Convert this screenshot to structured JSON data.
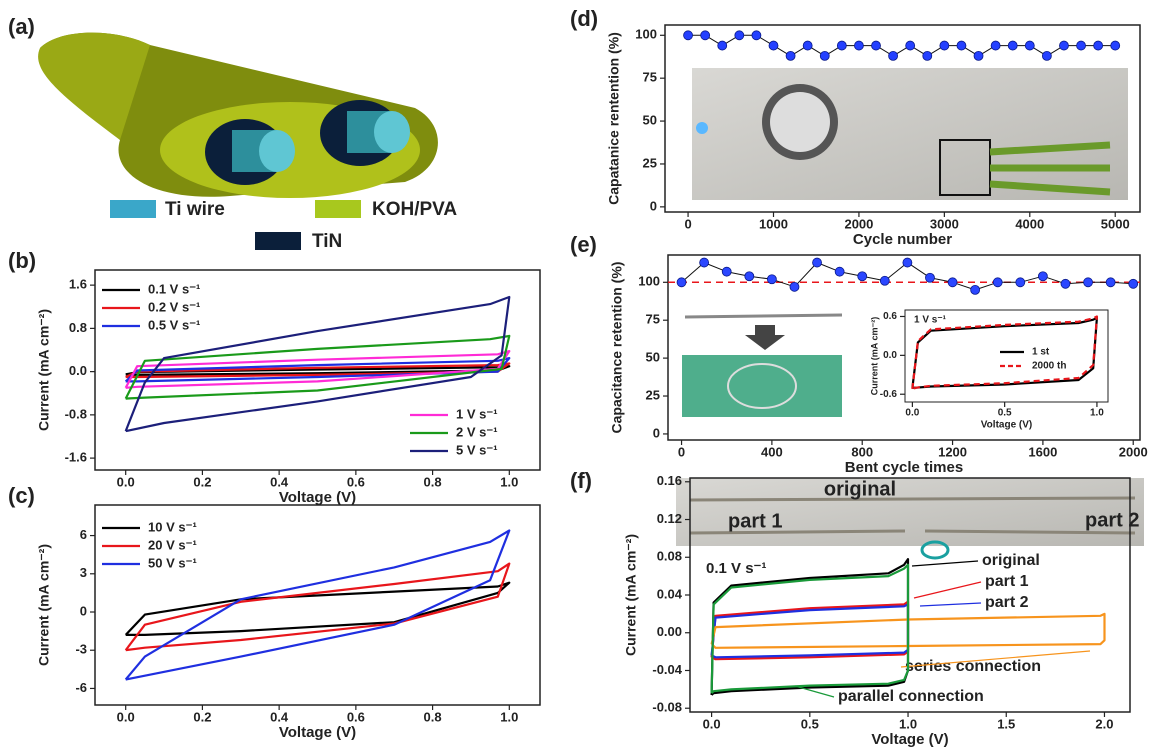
{
  "chart_data": [
    {
      "type": "diagram",
      "panel_label": "(a)",
      "legend": [
        {
          "name": "Ti wire",
          "color": "#3aa7c9"
        },
        {
          "name": "KOH/PVA",
          "color": "#a8c81e"
        },
        {
          "name": "TiN",
          "color": "#0b1f3a"
        }
      ]
    },
    {
      "type": "line",
      "panel_label": "(b)",
      "x_label": "Voltage (V)",
      "y_label": "Current (mA cm⁻²)",
      "xlim": [
        -0.08,
        1.08
      ],
      "ylim": [
        -1.82,
        1.88
      ],
      "xticks": [
        {
          "value": 0,
          "label": "0.0"
        },
        0.2,
        0.4,
        0.6,
        0.8,
        {
          "value": 1,
          "label": "1.0"
        }
      ],
      "yticks": [
        -1.6,
        -0.8,
        {
          "value": 0,
          "label": "0.0"
        },
        0.8,
        1.6
      ],
      "series": [
        {
          "name": "0.1 V s⁻¹",
          "color": "#000000",
          "x": [
            0,
            0.03,
            0.5,
            0.97,
            1,
            0.97,
            0.5,
            0.03,
            0
          ],
          "values": [
            -0.05,
            -0.01,
            0.04,
            0.08,
            0.1,
            0.02,
            -0.03,
            -0.06,
            -0.05
          ]
        },
        {
          "name": "0.2 V s⁻¹",
          "color": "#e8161b",
          "x": [
            0,
            0.03,
            0.5,
            0.97,
            1,
            0.97,
            0.5,
            0.03,
            0
          ],
          "values": [
            -0.1,
            0,
            0.07,
            0.12,
            0.15,
            0,
            -0.06,
            -0.1,
            -0.1
          ]
        },
        {
          "name": "0.5 V s⁻¹",
          "color": "#1f2fe0",
          "x": [
            0,
            0.03,
            0.5,
            0.97,
            1,
            0.97,
            0.5,
            0.03,
            0
          ],
          "values": [
            -0.18,
            0.02,
            0.12,
            0.2,
            0.25,
            0,
            -0.1,
            -0.18,
            -0.18
          ]
        },
        {
          "name": "1 V s⁻¹",
          "color": "#ff2bd6",
          "x": [
            0,
            0.03,
            0.5,
            0.97,
            1,
            0.97,
            0.5,
            0.03,
            0
          ],
          "values": [
            -0.3,
            0.1,
            0.22,
            0.32,
            0.38,
            0.05,
            -0.18,
            -0.28,
            -0.3
          ]
        },
        {
          "name": "2 V s⁻¹",
          "color": "#1a9a1a",
          "x": [
            0,
            0.05,
            0.5,
            0.95,
            1,
            0.98,
            0.5,
            0.05,
            0
          ],
          "values": [
            -0.5,
            0.2,
            0.42,
            0.6,
            0.66,
            0.05,
            -0.35,
            -0.48,
            -0.5
          ]
        },
        {
          "name": "5 V s⁻¹",
          "color": "#1c1f7a",
          "x": [
            0,
            0.05,
            0.1,
            0.5,
            0.95,
            1,
            0.98,
            0.9,
            0.5,
            0.1,
            0
          ],
          "values": [
            -1.1,
            -0.2,
            0.25,
            0.75,
            1.25,
            1.38,
            0.3,
            -0.1,
            -0.55,
            -0.95,
            -1.1
          ]
        }
      ]
    },
    {
      "type": "line",
      "panel_label": "(c)",
      "x_label": "Voltage (V)",
      "y_label": "Current (mA cm⁻²)",
      "xlim": [
        -0.08,
        1.08
      ],
      "ylim": [
        -7.3,
        8.4
      ],
      "xticks": [
        {
          "value": 0,
          "label": "0.0"
        },
        0.2,
        0.4,
        0.6,
        0.8,
        {
          "value": 1,
          "label": "1.0"
        }
      ],
      "yticks": [
        -6,
        -3,
        0,
        3,
        6
      ],
      "series": [
        {
          "name": "10 V s⁻¹",
          "color": "#000000",
          "x": [
            0,
            0.05,
            0.3,
            0.7,
            0.97,
            1,
            0.97,
            0.7,
            0.3,
            0.05,
            0
          ],
          "values": [
            -1.8,
            -0.2,
            1.0,
            1.6,
            2.0,
            2.3,
            1.5,
            -0.8,
            -1.5,
            -1.8,
            -1.8
          ]
        },
        {
          "name": "20 V s⁻¹",
          "color": "#e8161b",
          "x": [
            0,
            0.05,
            0.3,
            0.7,
            0.97,
            1,
            0.97,
            0.7,
            0.3,
            0.05,
            0
          ],
          "values": [
            -3.0,
            -1.0,
            0.8,
            2.2,
            3.2,
            3.8,
            1.2,
            -0.9,
            -2.2,
            -2.8,
            -3.0
          ]
        },
        {
          "name": "50 V s⁻¹",
          "color": "#1f2fe0",
          "x": [
            0,
            0.05,
            0.3,
            0.7,
            0.95,
            1,
            0.95,
            0.7,
            0.3,
            0.05,
            0
          ],
          "values": [
            -5.3,
            -3.5,
            1.0,
            3.5,
            5.5,
            6.4,
            2.5,
            -1.0,
            -3.5,
            -5.0,
            -5.3
          ]
        }
      ]
    },
    {
      "type": "line",
      "panel_label": "(d)",
      "x_label": "Cycle number",
      "y_label": "Capatanice rentention (%)",
      "xlim": [
        -270,
        5290
      ],
      "ylim": [
        -3,
        106
      ],
      "xticks": [
        0,
        1000,
        2000,
        3000,
        4000,
        5000
      ],
      "yticks": [
        0,
        25,
        50,
        75,
        100
      ],
      "series": [
        {
          "color": "#2440ff",
          "markers": true,
          "x": [
            0,
            200,
            400,
            600,
            800,
            1000,
            1200,
            1400,
            1600,
            1800,
            2000,
            2200,
            2400,
            2600,
            2800,
            3000,
            3200,
            3400,
            3600,
            3800,
            4000,
            4200,
            4400,
            4600,
            4800,
            5000
          ],
          "values": [
            100,
            100,
            94,
            100,
            100,
            94,
            88,
            94,
            88,
            94,
            94,
            94,
            88,
            94,
            88,
            94,
            94,
            88,
            94,
            94,
            94,
            88,
            94,
            94,
            94,
            94
          ]
        }
      ]
    },
    {
      "type": "line",
      "panel_label": "(e)",
      "x_label": "Bent cycle times",
      "y_label": "Capacitance retention (%)",
      "xlim": [
        -60,
        2030
      ],
      "ylim": [
        -4,
        118
      ],
      "xticks": [
        0,
        400,
        800,
        1200,
        1600,
        2000
      ],
      "yticks": [
        0,
        25,
        50,
        75,
        100
      ],
      "reference_line": 100,
      "series": [
        {
          "color": "#2b47ff",
          "markers": true,
          "x": [
            0,
            100,
            200,
            300,
            400,
            500,
            600,
            700,
            800,
            900,
            1000,
            1100,
            1200,
            1300,
            1400,
            1500,
            1600,
            1700,
            1800,
            1900,
            2000
          ],
          "values": [
            100,
            113,
            107,
            104,
            102,
            97,
            113,
            107,
            104,
            101,
            113,
            103,
            100,
            95,
            100,
            100,
            104,
            99,
            100,
            100,
            99
          ]
        }
      ],
      "inset": {
        "type": "line",
        "x_label": "Voltage (V)",
        "y_label": "Current (mA cm⁻²)",
        "xlim": [
          -0.04,
          1.06
        ],
        "ylim": [
          -0.72,
          0.7
        ],
        "xticks": [
          {
            "value": 0,
            "label": "0.0"
          },
          0.5,
          {
            "value": 1,
            "label": "1.0"
          }
        ],
        "yticks": [
          -0.6,
          {
            "value": 0,
            "label": "0.0"
          },
          0.6
        ],
        "annotations": [
          {
            "text": "1 V s⁻¹",
            "color": "#000000"
          }
        ],
        "series": [
          {
            "name": "1 st",
            "color": "#000000",
            "x": [
              0,
              0.03,
              0.1,
              0.5,
              0.9,
              0.98,
              1,
              0.98,
              0.9,
              0.5,
              0.1,
              0.02,
              0
            ],
            "values": [
              -0.5,
              0.2,
              0.38,
              0.45,
              0.5,
              0.55,
              0.58,
              -0.2,
              -0.38,
              -0.45,
              -0.48,
              -0.5,
              -0.5
            ]
          },
          {
            "name": "2000 th",
            "color": "#e8161b",
            "dash": true,
            "x": [
              0,
              0.03,
              0.1,
              0.5,
              0.9,
              0.98,
              1,
              0.98,
              0.9,
              0.5,
              0.1,
              0.02,
              0
            ],
            "values": [
              -0.52,
              0.22,
              0.4,
              0.47,
              0.52,
              0.57,
              0.6,
              -0.15,
              -0.35,
              -0.43,
              -0.47,
              -0.5,
              -0.52
            ]
          }
        ]
      }
    },
    {
      "type": "line",
      "panel_label": "(f)",
      "x_label": "Voltage (V)",
      "y_label": "Current (mA cm⁻²)",
      "xlim": [
        -0.11,
        2.13
      ],
      "ylim": [
        -0.084,
        0.164
      ],
      "xticks": [
        {
          "value": 0,
          "label": "0.0"
        },
        0.5,
        {
          "value": 1,
          "label": "1.0"
        },
        1.5,
        {
          "value": 2,
          "label": "2.0"
        }
      ],
      "yticks": [
        -0.08,
        -0.04,
        {
          "value": 0,
          "label": "0.00"
        },
        0.04,
        0.08,
        0.12,
        0.16
      ],
      "annotations": [
        {
          "text": "original",
          "color": "#000000"
        },
        {
          "text": "part 1",
          "color": "#e8161b"
        },
        {
          "text": "part 2",
          "color": "#1c2a8a"
        },
        {
          "text": "0.1 V s⁻¹",
          "color": "#000000"
        }
      ],
      "series": [
        {
          "name": "original",
          "color": "#000000",
          "x": [
            0,
            0.01,
            0.1,
            0.5,
            0.9,
            0.98,
            1,
            1,
            0.98,
            0.9,
            0.5,
            0.1,
            0.01,
            0
          ],
          "values": [
            -0.066,
            0.032,
            0.05,
            0.058,
            0.063,
            0.072,
            0.078,
            -0.04,
            -0.052,
            -0.056,
            -0.058,
            -0.062,
            -0.064,
            -0.066
          ]
        },
        {
          "name": "part 1",
          "color": "#e8161b",
          "x": [
            0,
            0.02,
            0.5,
            0.98,
            1,
            1,
            0.98,
            0.5,
            0.02,
            0
          ],
          "values": [
            -0.026,
            0.018,
            0.026,
            0.03,
            0.033,
            -0.02,
            -0.023,
            -0.026,
            -0.028,
            -0.026
          ]
        },
        {
          "name": "part 2",
          "color": "#1f2fe0",
          "x": [
            0,
            0.02,
            0.5,
            0.98,
            1,
            1,
            0.98,
            0.5,
            0.02,
            0
          ],
          "values": [
            -0.024,
            0.016,
            0.024,
            0.028,
            0.03,
            -0.018,
            -0.021,
            -0.024,
            -0.026,
            -0.024
          ]
        },
        {
          "name": "series connection",
          "color": "#f7941d",
          "x": [
            0,
            0.02,
            1,
            1.98,
            2,
            2,
            1.98,
            1,
            0.02,
            0
          ],
          "values": [
            -0.012,
            0.006,
            0.014,
            0.018,
            0.02,
            -0.008,
            -0.012,
            -0.014,
            -0.016,
            -0.012
          ]
        },
        {
          "name": "parallel connection",
          "color": "#1a9a3a",
          "x": [
            0,
            0.01,
            0.1,
            0.5,
            0.9,
            0.98,
            1,
            1,
            0.98,
            0.9,
            0.5,
            0.1,
            0.01,
            0
          ],
          "values": [
            -0.064,
            0.03,
            0.048,
            0.056,
            0.06,
            0.068,
            0.072,
            -0.04,
            -0.05,
            -0.054,
            -0.056,
            -0.06,
            -0.062,
            -0.064
          ]
        }
      ]
    }
  ]
}
